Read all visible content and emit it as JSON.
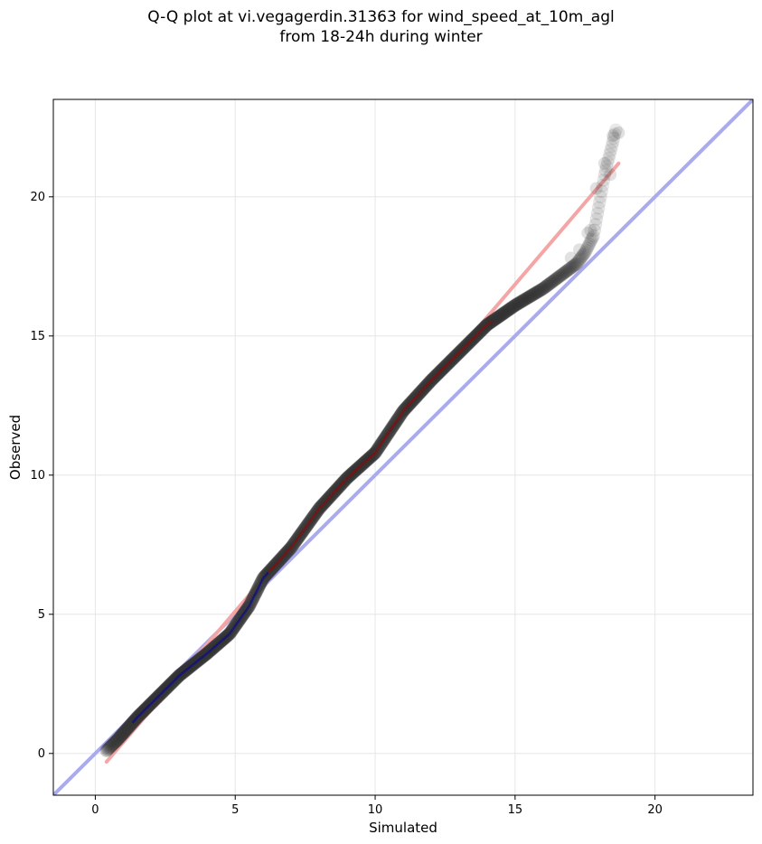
{
  "chart_data": {
    "type": "scatter",
    "title_line1": "Q-Q plot at vi.vegagerdin.31363 for wind_speed_at_10m_agl",
    "title_line2": "from 18-24h during winter",
    "xlabel": "Simulated",
    "ylabel": "Observed",
    "xlim": [
      -1.5,
      23.5
    ],
    "ylim": [
      -1.5,
      23.5
    ],
    "xticks": [
      0,
      5,
      10,
      15,
      20
    ],
    "yticks": [
      0,
      5,
      10,
      15,
      20
    ],
    "grid": true,
    "reference_line": {
      "from": [
        -1.5,
        -1.5
      ],
      "to": [
        23.5,
        23.5
      ],
      "color": "#aaaaee"
    },
    "fit_line": {
      "from": [
        0.4,
        -0.3
      ],
      "to": [
        18.7,
        21.2
      ],
      "color": "#f4a6a6"
    },
    "quantile_curve": [
      [
        0.4,
        0.1
      ],
      [
        0.8,
        0.5
      ],
      [
        1.5,
        1.3
      ],
      [
        2.0,
        1.8
      ],
      [
        3.0,
        2.8
      ],
      [
        4.0,
        3.6
      ],
      [
        4.8,
        4.3
      ],
      [
        5.5,
        5.3
      ],
      [
        6.0,
        6.3
      ],
      [
        7.0,
        7.4
      ],
      [
        8.0,
        8.8
      ],
      [
        9.0,
        9.9
      ],
      [
        10.0,
        10.8
      ],
      [
        11.0,
        12.3
      ],
      [
        12.0,
        13.4
      ],
      [
        13.0,
        14.4
      ],
      [
        14.0,
        15.4
      ],
      [
        15.0,
        16.1
      ],
      [
        16.0,
        16.7
      ],
      [
        16.8,
        17.3
      ],
      [
        17.2,
        17.6
      ],
      [
        17.5,
        18.0
      ],
      [
        17.8,
        18.6
      ],
      [
        18.2,
        20.8
      ],
      [
        18.6,
        22.4
      ]
    ],
    "outlier_points": [
      [
        17.6,
        18.7
      ],
      [
        17.9,
        20.3
      ],
      [
        18.2,
        21.2
      ],
      [
        18.4,
        20.8
      ],
      [
        18.5,
        22.2
      ],
      [
        18.7,
        22.3
      ],
      [
        17.0,
        17.8
      ],
      [
        17.3,
        18.1
      ],
      [
        17.7,
        18.8
      ]
    ],
    "point_color": "#333333",
    "low_color": "#0b0b8a",
    "high_color": "#8a0b0b"
  }
}
